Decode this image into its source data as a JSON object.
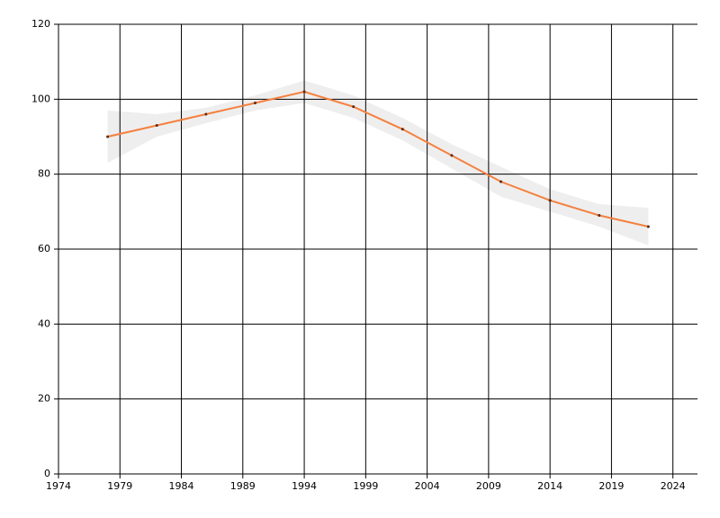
{
  "chart_data": {
    "type": "line",
    "x": [
      1978,
      1982,
      1986,
      1990,
      1994,
      1998,
      2002,
      2006,
      2010,
      2014,
      2018,
      2022
    ],
    "values": [
      90,
      93,
      96,
      99,
      102,
      98,
      92,
      85,
      78,
      73,
      69,
      66
    ],
    "lower": [
      83,
      90,
      93.6,
      97,
      99,
      95,
      89,
      81.5,
      74,
      70,
      66,
      61
    ],
    "upper": [
      97,
      96,
      97.7,
      101,
      105,
      101,
      95,
      88,
      82,
      76,
      72,
      71
    ],
    "color": "#f5803e",
    "band_color": "#eeeeee",
    "marker_color": "#5a2a10",
    "xlim": [
      1974,
      2026
    ],
    "xticks": [
      1974,
      1979,
      1984,
      1989,
      1994,
      1999,
      2004,
      2009,
      2014,
      2019,
      2024
    ],
    "ylim": [
      0,
      120
    ],
    "yticks": [
      0,
      20,
      40,
      60,
      80,
      100,
      120
    ],
    "grid": true
  }
}
